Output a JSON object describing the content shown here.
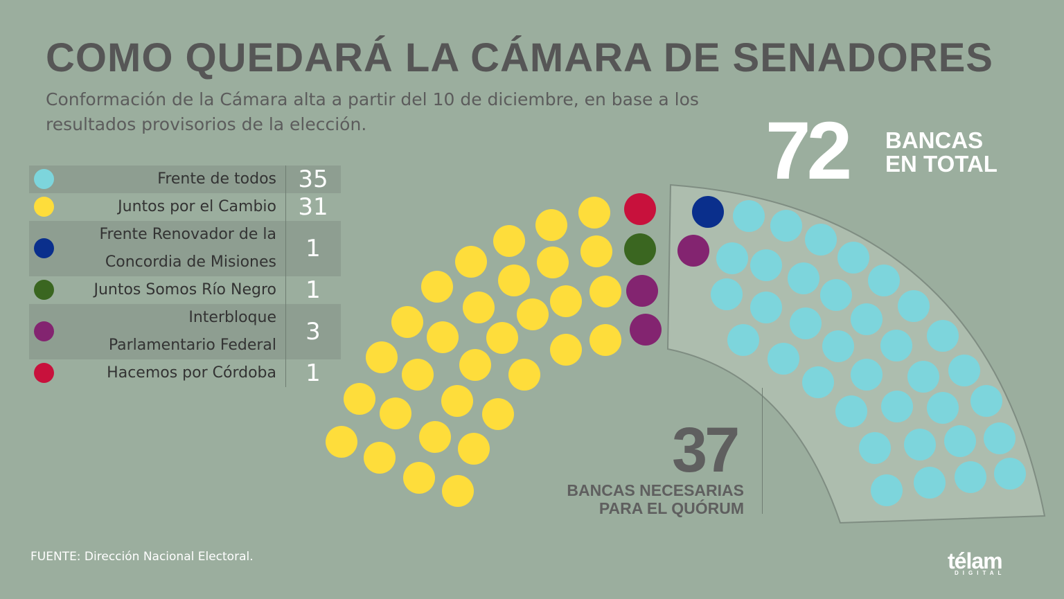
{
  "title": "COMO QUEDARÁ LA CÁMARA DE SENADORES",
  "subtitle": "Conformación de la Cámara alta a partir del 10 de diciembre, en base a los resultados provisorios de la elección.",
  "total": {
    "value": "72",
    "label_line1": "BANCAS",
    "label_line2": "EN TOTAL"
  },
  "quorum": {
    "value": "37",
    "label_line1": "BANCAS NECESARIAS",
    "label_line2": "PARA EL QUÓRUM"
  },
  "source": "FUENTE:  Dirección Nacional Electoral.",
  "logo": {
    "name": "télam",
    "sub": "DIGITAL"
  },
  "chart_data": {
    "type": "parliament",
    "total_seats": 72,
    "majority": 37,
    "series": [
      {
        "name": "Frente de todos",
        "label_lines": [
          "Frente de todos"
        ],
        "value": 35,
        "color": "#7dd5dc"
      },
      {
        "name": "Juntos por el Cambio",
        "label_lines": [
          "Juntos por el Cambio"
        ],
        "value": 31,
        "color": "#fedd3b"
      },
      {
        "name": "Frente Renovador de la Concordia de Misiones",
        "label_lines": [
          "Frente Renovador de la",
          "Concordia de Misiones"
        ],
        "value": 1,
        "color": "#0a2f8c"
      },
      {
        "name": "Juntos Somos Río Negro",
        "label_lines": [
          "Juntos Somos Río Negro"
        ],
        "value": 1,
        "color": "#3a6620"
      },
      {
        "name": "Interbloque Parlamentario Federal",
        "label_lines": [
          "Interbloque",
          "Parlamentario Federal"
        ],
        "value": 3,
        "color": "#832470"
      },
      {
        "name": "Hacemos por Córdoba",
        "label_lines": [
          "Hacemos por Córdoba"
        ],
        "value": 1,
        "color": "#c8113c"
      }
    ]
  }
}
